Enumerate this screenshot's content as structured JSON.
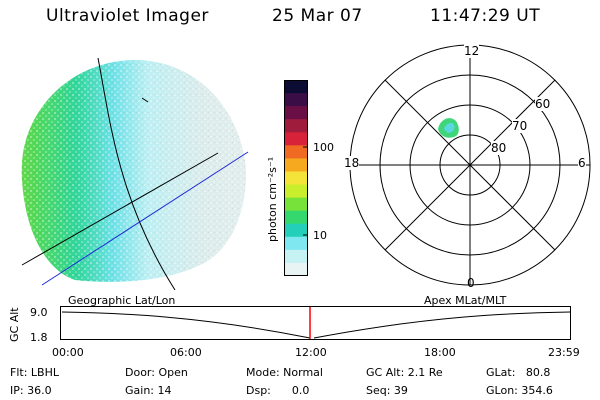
{
  "header": {
    "title": "Ultraviolet Imager",
    "date": "25 Mar 07",
    "time": "11:47:29 UT"
  },
  "colorbar": {
    "label": "photon cm⁻²s⁻¹",
    "ticks": [
      "100",
      "10"
    ],
    "colors": [
      "#0b0b33",
      "#3a0d47",
      "#6a0e46",
      "#a01c3c",
      "#d8223a",
      "#f06a24",
      "#f6a91e",
      "#f4e43a",
      "#c9ee2c",
      "#77e33a",
      "#34d86e",
      "#23cfb8",
      "#7ee7f0",
      "#c7f2f4",
      "#e8f3f3"
    ]
  },
  "polar": {
    "labels": {
      "top": "12",
      "bottom": "0",
      "left": "18",
      "right": "6",
      "lat60": "60",
      "lat70": "70",
      "lat80": "80"
    }
  },
  "timeline": {
    "left_title": "Geographic Lat/Lon",
    "right_title": "Apex MLat/MLT",
    "y_axis_label": "GC Alt",
    "y_ticks": [
      "9.0",
      "1.8"
    ],
    "x_ticks": [
      "00:00",
      "06:00",
      "12:00",
      "18:00",
      "23:59"
    ],
    "marker_color": "#ff0000"
  },
  "info": {
    "flt": "Flt: LBHL",
    "ip": "IP: 36.0",
    "door": "Door: Open",
    "gain": "Gain: 14",
    "mode": "Mode: Normal",
    "dsp": "Dsp:      0.0",
    "gcalt": "GC Alt: 2.1 Re",
    "seq": "Seq: 39",
    "glat": "GLat:   80.8",
    "glon": "GLon: 354.6"
  }
}
